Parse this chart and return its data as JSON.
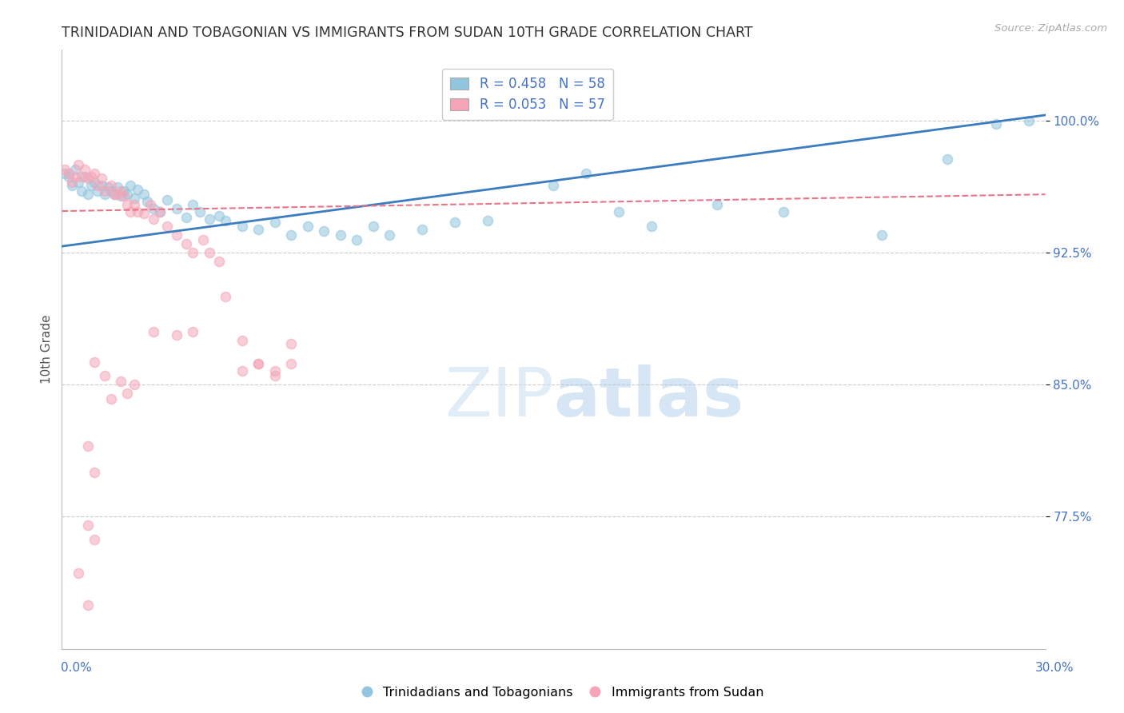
{
  "title": "TRINIDADIAN AND TOBAGONIAN VS IMMIGRANTS FROM SUDAN 10TH GRADE CORRELATION CHART",
  "source": "Source: ZipAtlas.com",
  "ylabel": "10th Grade",
  "ytick_values": [
    1.0,
    0.925,
    0.85,
    0.775
  ],
  "ytick_labels": [
    "100.0%",
    "92.5%",
    "85.0%",
    "77.5%"
  ],
  "xlim": [
    0.0,
    0.3
  ],
  "ylim": [
    0.7,
    1.04
  ],
  "legend_r1_label": "R = 0.458",
  "legend_r1_n": "N = 58",
  "legend_r2_label": "R = 0.053",
  "legend_r2_n": "N = 57",
  "blue_color": "#92c5de",
  "pink_color": "#f4a6b8",
  "blue_line_color": "#3d7bbf",
  "pink_line_color": "#e8748a",
  "axis_label_color": "#4472c4",
  "source_color": "#aaaaaa",
  "title_color": "#333333",
  "ylabel_color": "#555555",
  "watermark_color": "#ddeeff",
  "grid_color": "#cccccc",
  "blue_line_y0": 0.9285,
  "blue_line_y1": 1.003,
  "pink_line_y0": 0.9485,
  "pink_line_y1": 0.958,
  "blue_scatter": [
    [
      0.001,
      0.97
    ],
    [
      0.002,
      0.968
    ],
    [
      0.003,
      0.963
    ],
    [
      0.004,
      0.972
    ],
    [
      0.005,
      0.965
    ],
    [
      0.006,
      0.96
    ],
    [
      0.007,
      0.968
    ],
    [
      0.008,
      0.958
    ],
    [
      0.009,
      0.963
    ],
    [
      0.01,
      0.965
    ],
    [
      0.011,
      0.96
    ],
    [
      0.012,
      0.963
    ],
    [
      0.013,
      0.958
    ],
    [
      0.014,
      0.962
    ],
    [
      0.015,
      0.96
    ],
    [
      0.016,
      0.958
    ],
    [
      0.017,
      0.962
    ],
    [
      0.018,
      0.957
    ],
    [
      0.019,
      0.96
    ],
    [
      0.02,
      0.958
    ],
    [
      0.021,
      0.963
    ],
    [
      0.022,
      0.956
    ],
    [
      0.023,
      0.961
    ],
    [
      0.025,
      0.958
    ],
    [
      0.026,
      0.954
    ],
    [
      0.028,
      0.95
    ],
    [
      0.03,
      0.948
    ],
    [
      0.032,
      0.955
    ],
    [
      0.035,
      0.95
    ],
    [
      0.038,
      0.945
    ],
    [
      0.04,
      0.952
    ],
    [
      0.042,
      0.948
    ],
    [
      0.045,
      0.944
    ],
    [
      0.048,
      0.946
    ],
    [
      0.05,
      0.943
    ],
    [
      0.055,
      0.94
    ],
    [
      0.06,
      0.938
    ],
    [
      0.065,
      0.942
    ],
    [
      0.07,
      0.935
    ],
    [
      0.075,
      0.94
    ],
    [
      0.08,
      0.937
    ],
    [
      0.085,
      0.935
    ],
    [
      0.09,
      0.932
    ],
    [
      0.095,
      0.94
    ],
    [
      0.1,
      0.935
    ],
    [
      0.11,
      0.938
    ],
    [
      0.12,
      0.942
    ],
    [
      0.13,
      0.943
    ],
    [
      0.15,
      0.963
    ],
    [
      0.16,
      0.97
    ],
    [
      0.17,
      0.948
    ],
    [
      0.18,
      0.94
    ],
    [
      0.2,
      0.952
    ],
    [
      0.22,
      0.948
    ],
    [
      0.25,
      0.935
    ],
    [
      0.27,
      0.978
    ],
    [
      0.285,
      0.998
    ],
    [
      0.295,
      1.0
    ]
  ],
  "pink_scatter": [
    [
      0.001,
      0.972
    ],
    [
      0.002,
      0.97
    ],
    [
      0.003,
      0.965
    ],
    [
      0.004,
      0.968
    ],
    [
      0.005,
      0.975
    ],
    [
      0.006,
      0.968
    ],
    [
      0.007,
      0.972
    ],
    [
      0.008,
      0.967
    ],
    [
      0.009,
      0.968
    ],
    [
      0.01,
      0.97
    ],
    [
      0.011,
      0.963
    ],
    [
      0.012,
      0.967
    ],
    [
      0.013,
      0.96
    ],
    [
      0.015,
      0.963
    ],
    [
      0.016,
      0.958
    ],
    [
      0.017,
      0.958
    ],
    [
      0.018,
      0.96
    ],
    [
      0.019,
      0.957
    ],
    [
      0.02,
      0.952
    ],
    [
      0.021,
      0.948
    ],
    [
      0.022,
      0.952
    ],
    [
      0.023,
      0.948
    ],
    [
      0.025,
      0.947
    ],
    [
      0.027,
      0.952
    ],
    [
      0.028,
      0.944
    ],
    [
      0.03,
      0.948
    ],
    [
      0.032,
      0.94
    ],
    [
      0.035,
      0.935
    ],
    [
      0.038,
      0.93
    ],
    [
      0.04,
      0.925
    ],
    [
      0.043,
      0.932
    ],
    [
      0.045,
      0.925
    ],
    [
      0.048,
      0.92
    ],
    [
      0.05,
      0.9
    ],
    [
      0.055,
      0.875
    ],
    [
      0.06,
      0.862
    ],
    [
      0.065,
      0.858
    ],
    [
      0.07,
      0.873
    ],
    [
      0.01,
      0.863
    ],
    [
      0.013,
      0.855
    ],
    [
      0.015,
      0.842
    ],
    [
      0.018,
      0.852
    ],
    [
      0.02,
      0.845
    ],
    [
      0.022,
      0.85
    ],
    [
      0.008,
      0.815
    ],
    [
      0.01,
      0.8
    ],
    [
      0.008,
      0.77
    ],
    [
      0.01,
      0.762
    ],
    [
      0.005,
      0.743
    ],
    [
      0.008,
      0.725
    ],
    [
      0.028,
      0.88
    ],
    [
      0.035,
      0.878
    ],
    [
      0.04,
      0.88
    ],
    [
      0.055,
      0.858
    ],
    [
      0.06,
      0.862
    ],
    [
      0.065,
      0.855
    ],
    [
      0.07,
      0.862
    ]
  ]
}
